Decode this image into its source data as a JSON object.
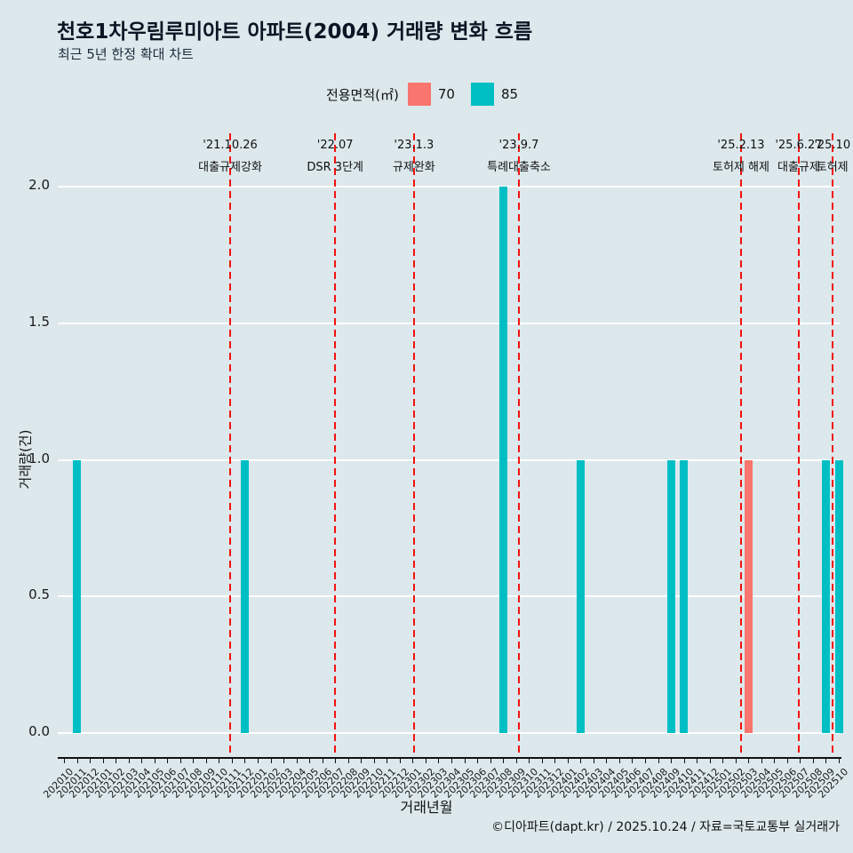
{
  "chart_data": {
    "type": "bar",
    "title": "천호1차우림루미아트 아파트(2004) 거래량 변화 흐름",
    "subtitle": "최근 5년 한정 확대 차트",
    "xlabel": "거래년월",
    "ylabel": "거래량(건)",
    "ylim": [
      0,
      2
    ],
    "yticks": [
      "0.0",
      "0.5",
      "1.0",
      "1.5",
      "2.0"
    ],
    "grid": true,
    "background_color": "#dce8ec",
    "legend": {
      "title": "전용면적(㎡)",
      "position": "top",
      "items": [
        {
          "label": "70",
          "color": "#F8766D"
        },
        {
          "label": "85",
          "color": "#00BFC4"
        }
      ]
    },
    "categories": [
      "202010",
      "202011",
      "202012",
      "202101",
      "202102",
      "202103",
      "202104",
      "202105",
      "202106",
      "202107",
      "202108",
      "202109",
      "202110",
      "202111",
      "202112",
      "202201",
      "202202",
      "202203",
      "202204",
      "202205",
      "202206",
      "202207",
      "202208",
      "202209",
      "202210",
      "202211",
      "202212",
      "202301",
      "202302",
      "202303",
      "202304",
      "202305",
      "202306",
      "202307",
      "202308",
      "202309",
      "202310",
      "202311",
      "202312",
      "202401",
      "202402",
      "202403",
      "202404",
      "202405",
      "202406",
      "202407",
      "202408",
      "202409",
      "202410",
      "202411",
      "202412",
      "202501",
      "202502",
      "202503",
      "202504",
      "202505",
      "202506",
      "202507",
      "202508",
      "202509",
      "202510"
    ],
    "series": [
      {
        "name": "70",
        "color": "#F8766D",
        "points": {
          "202503": 1
        }
      },
      {
        "name": "85",
        "color": "#00BFC4",
        "points": {
          "202011": 1,
          "202112": 1,
          "202308": 2,
          "202402": 1,
          "202409": 1,
          "202410": 1,
          "202509": 1,
          "202510": 1
        }
      }
    ],
    "events": [
      {
        "date": "'21.10.26",
        "label": "대출규제강화",
        "x": 12.87
      },
      {
        "date": "'22.07",
        "label": "DSR 3단계",
        "x": 21.0
      },
      {
        "date": "'23.1.3",
        "label": "규제완화",
        "x": 27.1
      },
      {
        "date": "'23.9.7",
        "label": "특례대출축소",
        "x": 35.23
      },
      {
        "date": "'25.2.13",
        "label": "토허제 해제",
        "x": 52.43
      },
      {
        "date": "'25.6.27",
        "label": "대출규제",
        "x": 56.9
      },
      {
        "date": "'25.10",
        "label": "토허제",
        "x": 59.5
      }
    ],
    "event_line_color": "#f2120f"
  },
  "footer": {
    "credit": "©디아파트(dapt.kr) / 2025.10.24 / 자료=국토교통부 실거래가"
  }
}
